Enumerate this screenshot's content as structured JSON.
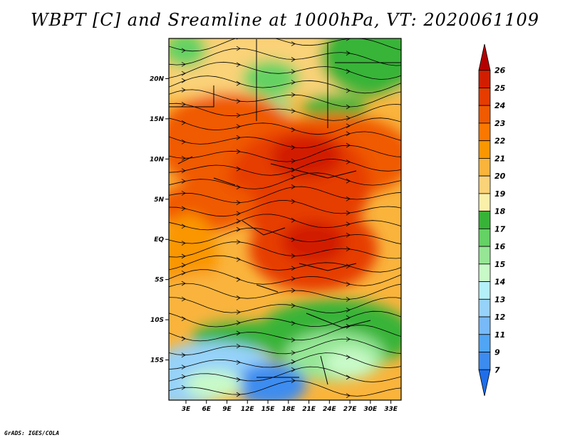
{
  "title": "WBPT [C] and Sreamline at 1000hPa, VT: 2020061109",
  "credit": "GrADS: IGES/COLA",
  "map": {
    "lat_labels": [
      "20N",
      "15N",
      "10N",
      "5N",
      "EQ",
      "5S",
      "10S",
      "15S"
    ],
    "lat_values": [
      20,
      15,
      10,
      5,
      0,
      -5,
      -10,
      -15
    ],
    "lon_labels": [
      "3E",
      "6E",
      "9E",
      "12E",
      "15E",
      "18E",
      "21E",
      "24E",
      "27E",
      "30E",
      "33E"
    ],
    "lon_values": [
      3,
      6,
      9,
      12,
      15,
      18,
      21,
      24,
      27,
      30,
      33
    ],
    "lat_range": [
      -20,
      25
    ],
    "lon_range": [
      0.5,
      34.5
    ]
  },
  "colorbar": {
    "labels": [
      "26",
      "25",
      "24",
      "23",
      "22",
      "21",
      "20",
      "19",
      "18",
      "17",
      "16",
      "15",
      "14",
      "13",
      "12",
      "11",
      "9",
      "7"
    ],
    "colors": [
      "#b40000",
      "#d21e00",
      "#e63c00",
      "#f05a00",
      "#fa7800",
      "#fa9600",
      "#fab43c",
      "#fad278",
      "#faf0aa",
      "#37b437",
      "#64d264",
      "#96e696",
      "#c8fac8",
      "#b4f0fa",
      "#96d2fa",
      "#78b9fa",
      "#50a5f5",
      "#3c8cf0",
      "#1e6eeb"
    ]
  }
}
